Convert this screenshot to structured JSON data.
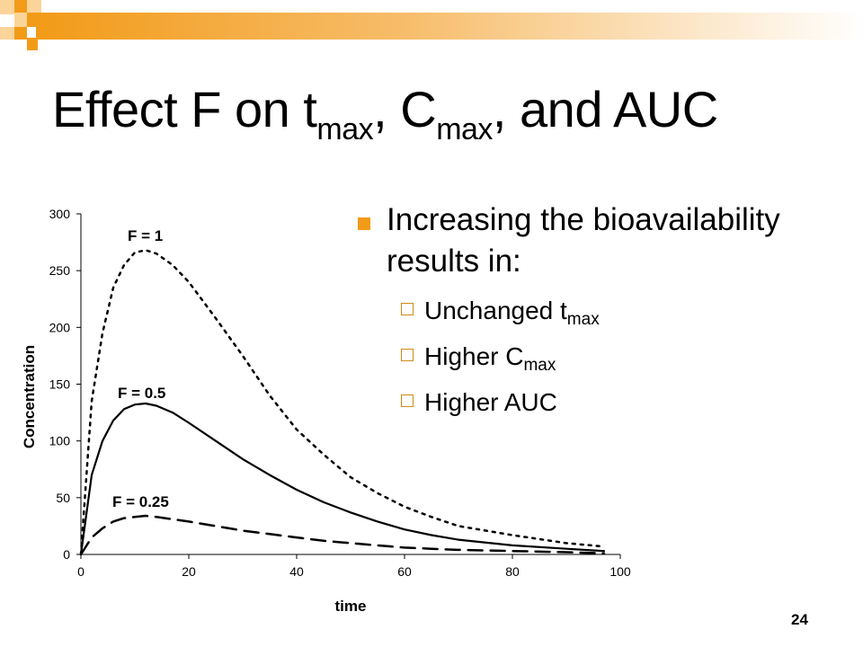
{
  "slide": {
    "title_parts": [
      "Effect F on t",
      "max",
      ", C",
      "max",
      ", and AUC"
    ],
    "bullet_main": "Increasing the bioavailability results in:",
    "sub_bullets": [
      {
        "text": "Unchanged t",
        "sub": "max"
      },
      {
        "text": "Higher C",
        "sub": "max"
      },
      {
        "text": "Higher AUC",
        "sub": ""
      }
    ],
    "page_number": "24",
    "colors": {
      "accent": "#f29b18",
      "accent_light": "#fbd49a"
    }
  },
  "chart_data": {
    "type": "line",
    "title": "",
    "xlabel": "time",
    "ylabel": "Concentration",
    "xlim": [
      0,
      100
    ],
    "ylim": [
      0,
      300
    ],
    "xticks": [
      0,
      20,
      40,
      60,
      80,
      100
    ],
    "yticks": [
      0,
      50,
      100,
      150,
      200,
      250,
      300
    ],
    "grid": false,
    "series": [
      {
        "name": "F = 1",
        "style": "dotted",
        "x": [
          0,
          2,
          4,
          6,
          8,
          10,
          12,
          14,
          17,
          20,
          25,
          30,
          35,
          40,
          45,
          50,
          55,
          60,
          65,
          70,
          80,
          90,
          97
        ],
        "values": [
          0,
          135,
          195,
          235,
          255,
          266,
          268,
          265,
          255,
          240,
          208,
          175,
          140,
          110,
          88,
          68,
          54,
          42,
          33,
          25,
          17,
          10,
          7
        ]
      },
      {
        "name": "F = 0.5",
        "style": "solid",
        "x": [
          0,
          2,
          4,
          6,
          8,
          10,
          12,
          14,
          17,
          20,
          25,
          30,
          35,
          40,
          45,
          50,
          55,
          60,
          65,
          70,
          80,
          90,
          97
        ],
        "values": [
          0,
          70,
          100,
          118,
          128,
          132,
          133,
          131,
          125,
          116,
          100,
          84,
          70,
          57,
          46,
          37,
          29,
          22,
          17,
          13,
          8,
          5,
          3
        ]
      },
      {
        "name": "F = 0.25",
        "style": "dashed",
        "x": [
          0,
          2,
          4,
          6,
          8,
          10,
          12,
          14,
          17,
          20,
          25,
          30,
          35,
          40,
          45,
          50,
          55,
          60,
          65,
          70,
          80,
          90,
          97
        ],
        "values": [
          0,
          15,
          23,
          29,
          32,
          33,
          34,
          33,
          31,
          29,
          25,
          21,
          18,
          15,
          12,
          10,
          8,
          6,
          5,
          4,
          3,
          2,
          1
        ]
      }
    ]
  }
}
